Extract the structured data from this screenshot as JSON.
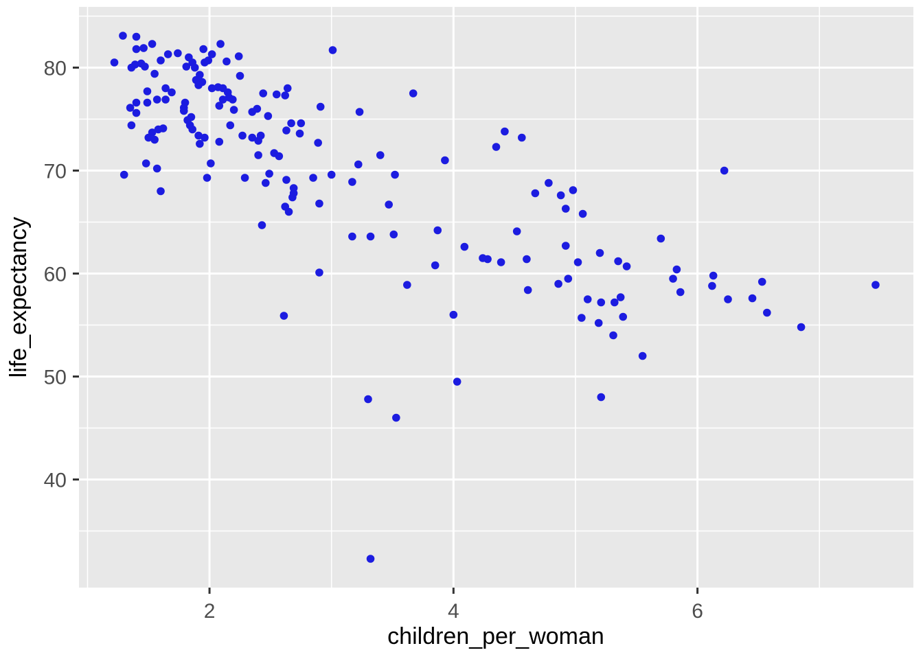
{
  "chart_data": {
    "type": "scatter",
    "title": "",
    "xlabel": "children_per_woman",
    "ylabel": "life_expectancy",
    "x_ticks": [
      2,
      4,
      6
    ],
    "x_tick_labels": [
      "2",
      "4",
      "6"
    ],
    "y_ticks": [
      40,
      50,
      60,
      70,
      80
    ],
    "y_tick_labels": [
      "40",
      "50",
      "60",
      "70",
      "80"
    ],
    "x_minor_ticks": [
      1,
      3,
      5,
      7
    ],
    "y_minor_ticks": [
      35,
      45,
      55,
      65,
      75,
      85
    ],
    "xlim": [
      0.93,
      7.77
    ],
    "ylim": [
      29.5,
      85.9
    ],
    "grid": "on",
    "legend_position": "none",
    "point_color": "#1C1CE0",
    "panel_color": "#E8E8E8",
    "gridline_color": "#FFFFFF",
    "tick_mark_color": "#333333",
    "points": [
      [
        1.29,
        83.1
      ],
      [
        1.4,
        83.0
      ],
      [
        1.4,
        81.8
      ],
      [
        1.46,
        81.9
      ],
      [
        1.53,
        82.3
      ],
      [
        1.74,
        81.4
      ],
      [
        1.66,
        81.3
      ],
      [
        1.6,
        80.7
      ],
      [
        1.22,
        80.5
      ],
      [
        1.36,
        80.0
      ],
      [
        1.39,
        80.3
      ],
      [
        1.44,
        80.4
      ],
      [
        1.47,
        80.1
      ],
      [
        1.55,
        79.4
      ],
      [
        1.95,
        81.8
      ],
      [
        2.02,
        81.3
      ],
      [
        2.09,
        82.3
      ],
      [
        1.99,
        80.7
      ],
      [
        1.96,
        80.5
      ],
      [
        1.83,
        81.0
      ],
      [
        1.86,
        80.5
      ],
      [
        1.81,
        80.1
      ],
      [
        1.88,
        80.0
      ],
      [
        2.14,
        80.6
      ],
      [
        2.24,
        81.1
      ],
      [
        1.92,
        79.3
      ],
      [
        1.89,
        78.8
      ],
      [
        1.94,
        78.6
      ],
      [
        1.91,
        78.3
      ],
      [
        2.25,
        79.2
      ],
      [
        2.02,
        78.0
      ],
      [
        2.07,
        78.1
      ],
      [
        2.11,
        78.0
      ],
      [
        2.15,
        77.6
      ],
      [
        2.16,
        77.1
      ],
      [
        2.11,
        76.9
      ],
      [
        2.19,
        76.9
      ],
      [
        2.44,
        77.5
      ],
      [
        2.55,
        77.4
      ],
      [
        2.64,
        78.0
      ],
      [
        2.62,
        77.3
      ],
      [
        3.01,
        81.7
      ],
      [
        3.67,
        77.5
      ],
      [
        1.49,
        77.7
      ],
      [
        1.64,
        78.0
      ],
      [
        1.69,
        77.6
      ],
      [
        1.64,
        76.9
      ],
      [
        1.57,
        76.9
      ],
      [
        1.49,
        76.6
      ],
      [
        1.4,
        76.6
      ],
      [
        1.35,
        76.1
      ],
      [
        1.4,
        75.6
      ],
      [
        1.36,
        74.4
      ],
      [
        1.62,
        74.1
      ],
      [
        1.58,
        74.0
      ],
      [
        1.53,
        73.7
      ],
      [
        1.5,
        73.2
      ],
      [
        1.55,
        73.0
      ],
      [
        1.8,
        76.6
      ],
      [
        1.79,
        76.1
      ],
      [
        1.79,
        75.8
      ],
      [
        1.85,
        75.2
      ],
      [
        1.82,
        74.9
      ],
      [
        1.84,
        74.4
      ],
      [
        1.86,
        74.0
      ],
      [
        1.91,
        73.4
      ],
      [
        1.96,
        73.2
      ],
      [
        1.92,
        72.6
      ],
      [
        2.08,
        72.8
      ],
      [
        2.17,
        74.4
      ],
      [
        2.27,
        73.4
      ],
      [
        2.35,
        73.2
      ],
      [
        2.42,
        73.4
      ],
      [
        2.4,
        72.9
      ],
      [
        2.2,
        75.9
      ],
      [
        2.35,
        75.7
      ],
      [
        2.39,
        76.0
      ],
      [
        2.48,
        75.3
      ],
      [
        2.08,
        76.3
      ],
      [
        2.53,
        71.7
      ],
      [
        2.57,
        71.4
      ],
      [
        2.4,
        71.5
      ],
      [
        2.63,
        73.9
      ],
      [
        2.67,
        74.6
      ],
      [
        2.75,
        74.6
      ],
      [
        2.74,
        73.6
      ],
      [
        2.89,
        72.7
      ],
      [
        2.91,
        76.2
      ],
      [
        3.23,
        75.7
      ],
      [
        1.48,
        70.7
      ],
      [
        1.57,
        70.2
      ],
      [
        1.3,
        69.6
      ],
      [
        2.01,
        70.7
      ],
      [
        1.98,
        69.3
      ],
      [
        2.29,
        69.3
      ],
      [
        1.6,
        68.0
      ],
      [
        2.49,
        69.7
      ],
      [
        2.46,
        68.8
      ],
      [
        2.63,
        69.1
      ],
      [
        2.69,
        68.3
      ],
      [
        2.69,
        67.8
      ],
      [
        2.68,
        67.4
      ],
      [
        2.62,
        66.5
      ],
      [
        2.65,
        66.0
      ],
      [
        2.43,
        64.7
      ],
      [
        2.85,
        69.3
      ],
      [
        3.0,
        69.6
      ],
      [
        3.17,
        68.9
      ],
      [
        3.52,
        69.6
      ],
      [
        2.9,
        66.8
      ],
      [
        3.47,
        66.7
      ],
      [
        3.4,
        71.5
      ],
      [
        3.22,
        70.6
      ],
      [
        3.93,
        71.0
      ],
      [
        3.17,
        63.6
      ],
      [
        3.32,
        63.6
      ],
      [
        3.51,
        63.8
      ],
      [
        3.87,
        64.2
      ],
      [
        3.85,
        60.8
      ],
      [
        2.9,
        60.1
      ],
      [
        3.62,
        58.9
      ],
      [
        2.61,
        55.9
      ],
      [
        4.35,
        72.3
      ],
      [
        4.42,
        73.8
      ],
      [
        4.56,
        73.2
      ],
      [
        4.78,
        68.8
      ],
      [
        4.67,
        67.8
      ],
      [
        4.88,
        67.6
      ],
      [
        4.98,
        68.1
      ],
      [
        4.92,
        66.3
      ],
      [
        5.06,
        65.8
      ],
      [
        4.52,
        64.1
      ],
      [
        4.92,
        62.7
      ],
      [
        5.7,
        63.4
      ],
      [
        4.09,
        62.6
      ],
      [
        4.24,
        61.5
      ],
      [
        4.28,
        61.4
      ],
      [
        4.39,
        61.1
      ],
      [
        4.6,
        61.4
      ],
      [
        5.2,
        62.0
      ],
      [
        5.02,
        61.1
      ],
      [
        5.35,
        61.2
      ],
      [
        5.42,
        60.7
      ],
      [
        5.83,
        60.4
      ],
      [
        5.8,
        59.5
      ],
      [
        4.86,
        59.0
      ],
      [
        4.94,
        59.5
      ],
      [
        4.61,
        58.4
      ],
      [
        5.86,
        58.2
      ],
      [
        6.13,
        59.8
      ],
      [
        6.12,
        58.8
      ],
      [
        6.53,
        59.2
      ],
      [
        6.25,
        57.5
      ],
      [
        6.45,
        57.6
      ],
      [
        6.57,
        56.2
      ],
      [
        6.85,
        54.8
      ],
      [
        7.46,
        58.9
      ],
      [
        5.1,
        57.5
      ],
      [
        5.21,
        57.2
      ],
      [
        5.32,
        57.2
      ],
      [
        5.37,
        57.7
      ],
      [
        5.05,
        55.7
      ],
      [
        5.19,
        55.2
      ],
      [
        5.39,
        55.8
      ],
      [
        5.31,
        54.0
      ],
      [
        4.0,
        56.0
      ],
      [
        6.22,
        70.0
      ],
      [
        4.03,
        49.5
      ],
      [
        3.3,
        47.8
      ],
      [
        3.53,
        46.0
      ],
      [
        5.55,
        52.0
      ],
      [
        5.21,
        48.0
      ],
      [
        3.32,
        32.3
      ]
    ]
  }
}
